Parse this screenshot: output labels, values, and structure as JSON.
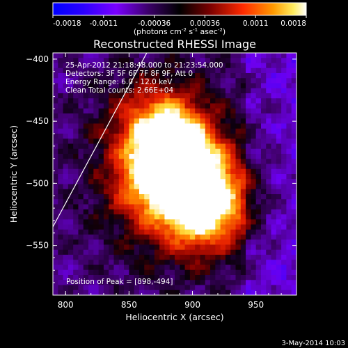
{
  "chart_data": {
    "type": "heatmap",
    "title": "Reconstructed RHESSI Image",
    "xlabel": "Heliocentric X (arcsec)",
    "ylabel": "Heliocentric Y (arcsec)",
    "xlim": [
      790,
      982
    ],
    "ylim": [
      -590,
      -395
    ],
    "x_ticks": [
      800,
      850,
      900,
      950
    ],
    "y_ticks": [
      -400,
      -450,
      -500,
      -550
    ],
    "colorbar": {
      "range": [
        -0.0018,
        0.0018
      ],
      "ticks": [
        "-0.0018",
        "-0.0011",
        "-0.00036",
        "0.00036",
        "0.0011",
        "0.0018"
      ],
      "unit_base": "(photons cm",
      "unit_exp1": "-2",
      "unit_mid": " s",
      "unit_exp2": "-1",
      "unit_mid2": " asec",
      "unit_exp3": "-2",
      "unit_end": ")"
    },
    "annotations": [
      "25-Apr-2012 21:18:48.000 to 21:23:54.000",
      "Detectors: 3F 5F 6F 7F 8F 9F, Att 0",
      "Energy Range: 6.0 - 12.0 keV",
      "Clean     Total counts: 2.66E+04"
    ],
    "peak_label": "Position of Peak = [898,-494]",
    "peak": [
      898,
      -494
    ],
    "sources": [
      {
        "x": 897,
        "y": -494,
        "value": 0.0018
      },
      {
        "x": 883,
        "y": -470,
        "value": 0.00165
      },
      {
        "x": 918,
        "y": -517,
        "value": 0.0013
      },
      {
        "x": 868,
        "y": -500,
        "value": 0.0011
      },
      {
        "x": 900,
        "y": -530,
        "value": 0.0009
      },
      {
        "x": 870,
        "y": -450,
        "value": 0.0009
      }
    ],
    "limb_line": [
      [
        790,
        -535
      ],
      [
        864,
        -395
      ]
    ]
  },
  "footer": {
    "timestamp": "3-May-2014 10:03"
  }
}
